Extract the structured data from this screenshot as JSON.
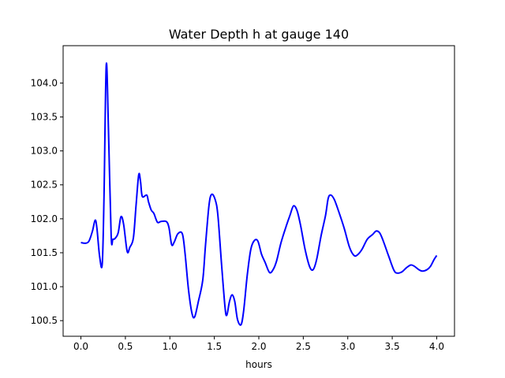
{
  "chart_data": {
    "type": "line",
    "title": "Water Depth h at gauge 140",
    "xlabel": "hours",
    "ylabel": "",
    "xlim": [
      -0.2,
      4.2
    ],
    "ylim": [
      100.27,
      104.55
    ],
    "xticks": [
      0.0,
      0.5,
      1.0,
      1.5,
      2.0,
      2.5,
      3.0,
      3.5,
      4.0
    ],
    "xtick_labels": [
      "0.0",
      "0.5",
      "1.0",
      "1.5",
      "2.0",
      "2.5",
      "3.0",
      "3.5",
      "4.0"
    ],
    "yticks": [
      100.5,
      101.0,
      101.5,
      102.0,
      102.5,
      103.0,
      103.5,
      104.0
    ],
    "ytick_labels": [
      "100.5",
      "101.0",
      "101.5",
      "102.0",
      "102.5",
      "103.0",
      "103.5",
      "104.0"
    ],
    "grid": false,
    "legend": false,
    "series": [
      {
        "color": "#0000ff",
        "points": [
          [
            0.0,
            101.65
          ],
          [
            0.05,
            101.64
          ],
          [
            0.09,
            101.67
          ],
          [
            0.13,
            101.82
          ],
          [
            0.16,
            101.98
          ],
          [
            0.18,
            101.86
          ],
          [
            0.21,
            101.45
          ],
          [
            0.24,
            101.34
          ],
          [
            0.26,
            102.35
          ],
          [
            0.285,
            104.27
          ],
          [
            0.31,
            103.3
          ],
          [
            0.34,
            101.75
          ],
          [
            0.36,
            101.7
          ],
          [
            0.39,
            101.72
          ],
          [
            0.42,
            101.8
          ],
          [
            0.45,
            102.03
          ],
          [
            0.48,
            101.92
          ],
          [
            0.52,
            101.52
          ],
          [
            0.55,
            101.58
          ],
          [
            0.59,
            101.72
          ],
          [
            0.62,
            102.2
          ],
          [
            0.65,
            102.65
          ],
          [
            0.67,
            102.55
          ],
          [
            0.69,
            102.33
          ],
          [
            0.74,
            102.35
          ],
          [
            0.76,
            102.25
          ],
          [
            0.79,
            102.13
          ],
          [
            0.82,
            102.08
          ],
          [
            0.86,
            101.95
          ],
          [
            0.9,
            101.96
          ],
          [
            0.96,
            101.96
          ],
          [
            0.99,
            101.87
          ],
          [
            1.02,
            101.62
          ],
          [
            1.05,
            101.66
          ],
          [
            1.09,
            101.78
          ],
          [
            1.14,
            101.78
          ],
          [
            1.17,
            101.5
          ],
          [
            1.21,
            100.95
          ],
          [
            1.25,
            100.6
          ],
          [
            1.28,
            100.56
          ],
          [
            1.32,
            100.78
          ],
          [
            1.37,
            101.1
          ],
          [
            1.4,
            101.6
          ],
          [
            1.44,
            102.2
          ],
          [
            1.47,
            102.36
          ],
          [
            1.51,
            102.28
          ],
          [
            1.54,
            102.05
          ],
          [
            1.58,
            101.35
          ],
          [
            1.62,
            100.7
          ],
          [
            1.64,
            100.58
          ],
          [
            1.67,
            100.78
          ],
          [
            1.7,
            100.88
          ],
          [
            1.73,
            100.78
          ],
          [
            1.76,
            100.52
          ],
          [
            1.8,
            100.44
          ],
          [
            1.83,
            100.65
          ],
          [
            1.87,
            101.17
          ],
          [
            1.91,
            101.55
          ],
          [
            1.95,
            101.68
          ],
          [
            1.99,
            101.67
          ],
          [
            2.03,
            101.48
          ],
          [
            2.07,
            101.36
          ],
          [
            2.12,
            101.21
          ],
          [
            2.16,
            101.25
          ],
          [
            2.2,
            101.38
          ],
          [
            2.25,
            101.65
          ],
          [
            2.31,
            101.9
          ],
          [
            2.35,
            102.05
          ],
          [
            2.39,
            102.19
          ],
          [
            2.43,
            102.12
          ],
          [
            2.47,
            101.9
          ],
          [
            2.52,
            101.55
          ],
          [
            2.57,
            101.3
          ],
          [
            2.61,
            101.25
          ],
          [
            2.65,
            101.4
          ],
          [
            2.7,
            101.75
          ],
          [
            2.75,
            102.05
          ],
          [
            2.78,
            102.3
          ],
          [
            2.81,
            102.35
          ],
          [
            2.85,
            102.28
          ],
          [
            2.9,
            102.1
          ],
          [
            2.96,
            101.86
          ],
          [
            3.02,
            101.58
          ],
          [
            3.07,
            101.46
          ],
          [
            3.11,
            101.47
          ],
          [
            3.16,
            101.55
          ],
          [
            3.22,
            101.7
          ],
          [
            3.28,
            101.77
          ],
          [
            3.32,
            101.82
          ],
          [
            3.36,
            101.79
          ],
          [
            3.4,
            101.67
          ],
          [
            3.46,
            101.45
          ],
          [
            3.52,
            101.24
          ],
          [
            3.56,
            101.2
          ],
          [
            3.61,
            101.22
          ],
          [
            3.66,
            101.28
          ],
          [
            3.71,
            101.32
          ],
          [
            3.75,
            101.3
          ],
          [
            3.8,
            101.25
          ],
          [
            3.84,
            101.23
          ],
          [
            3.89,
            101.25
          ],
          [
            3.93,
            101.3
          ],
          [
            3.97,
            101.4
          ],
          [
            4.0,
            101.46
          ]
        ]
      }
    ]
  }
}
